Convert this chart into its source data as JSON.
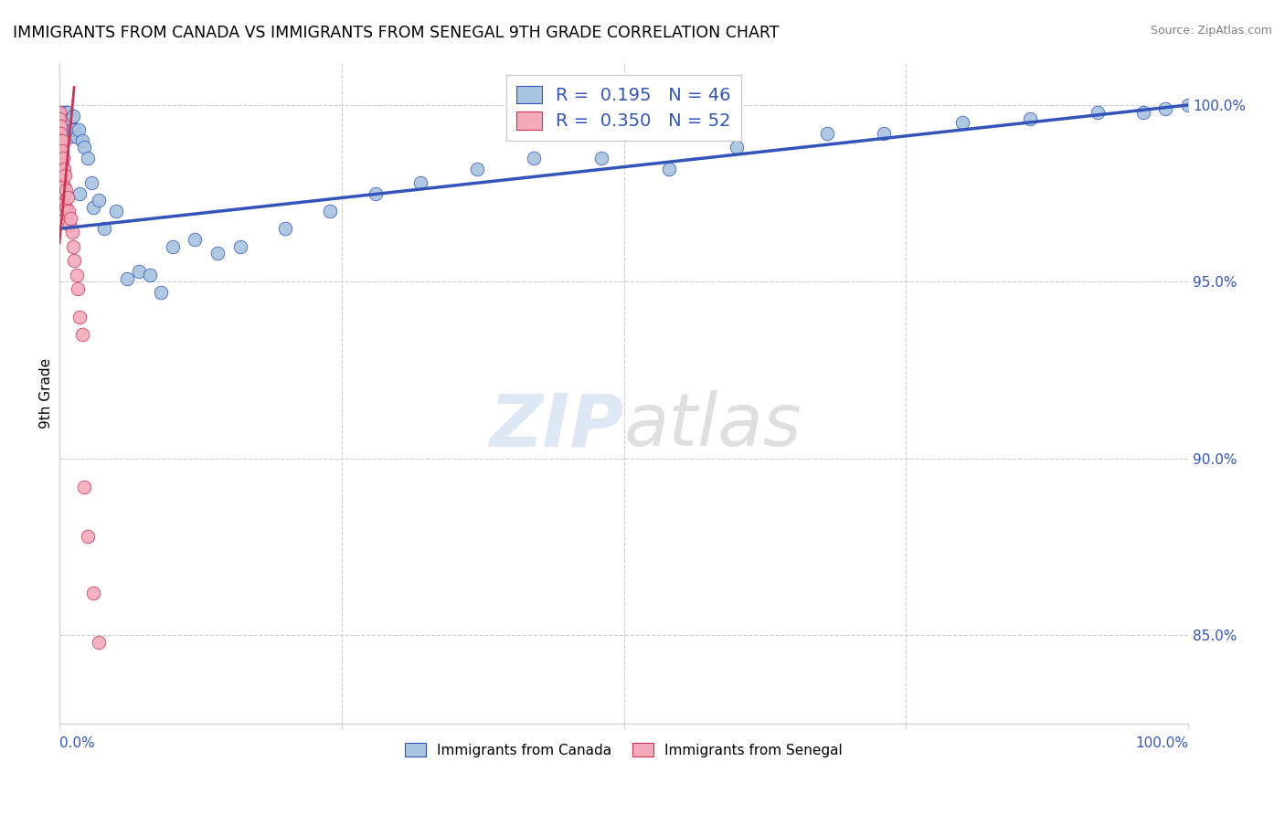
{
  "title": "IMMIGRANTS FROM CANADA VS IMMIGRANTS FROM SENEGAL 9TH GRADE CORRELATION CHART",
  "source": "Source: ZipAtlas.com",
  "ylabel": "9th Grade",
  "legend_blue_r_val": "0.195",
  "legend_blue_n_val": "46",
  "legend_pink_r_val": "0.350",
  "legend_pink_n_val": "52",
  "legend_blue_label": "Immigrants from Canada",
  "legend_pink_label": "Immigrants from Senegal",
  "blue_color": "#A8C4E0",
  "pink_color": "#F4AABB",
  "blue_line_color": "#3355BB",
  "pink_line_color": "#CC3355",
  "right_ytick_labels": [
    "85.0%",
    "90.0%",
    "95.0%",
    "100.0%"
  ],
  "right_ytick_values": [
    0.85,
    0.9,
    0.95,
    1.0
  ],
  "xlim": [
    0.0,
    1.0
  ],
  "ylim": [
    0.825,
    1.012
  ],
  "blue_x": [
    0.003,
    0.005,
    0.006,
    0.007,
    0.008,
    0.009,
    0.01,
    0.011,
    0.012,
    0.013,
    0.015,
    0.017,
    0.018,
    0.02,
    0.022,
    0.025,
    0.028,
    0.03,
    0.035,
    0.04,
    0.05,
    0.06,
    0.07,
    0.08,
    0.09,
    0.1,
    0.12,
    0.14,
    0.16,
    0.2,
    0.24,
    0.28,
    0.32,
    0.37,
    0.42,
    0.48,
    0.54,
    0.6,
    0.68,
    0.73,
    0.8,
    0.86,
    0.92,
    0.96,
    0.98,
    1.0
  ],
  "blue_y": [
    0.998,
    0.993,
    0.998,
    0.998,
    0.991,
    0.995,
    0.996,
    0.993,
    0.997,
    0.993,
    0.991,
    0.993,
    0.975,
    0.99,
    0.988,
    0.985,
    0.978,
    0.971,
    0.973,
    0.965,
    0.97,
    0.951,
    0.953,
    0.952,
    0.947,
    0.96,
    0.962,
    0.958,
    0.96,
    0.965,
    0.97,
    0.975,
    0.978,
    0.982,
    0.985,
    0.985,
    0.982,
    0.988,
    0.992,
    0.992,
    0.995,
    0.996,
    0.998,
    0.998,
    0.999,
    1.0
  ],
  "pink_x": [
    0.0,
    0.0,
    0.0,
    0.0,
    0.0,
    0.0,
    0.0,
    0.0,
    0.0,
    0.0,
    0.0,
    0.0,
    0.001,
    0.001,
    0.001,
    0.001,
    0.001,
    0.001,
    0.001,
    0.001,
    0.002,
    0.002,
    0.002,
    0.002,
    0.002,
    0.003,
    0.003,
    0.003,
    0.004,
    0.004,
    0.004,
    0.005,
    0.005,
    0.005,
    0.006,
    0.006,
    0.007,
    0.007,
    0.008,
    0.009,
    0.01,
    0.011,
    0.012,
    0.013,
    0.015,
    0.016,
    0.018,
    0.02,
    0.022,
    0.025,
    0.03,
    0.035
  ],
  "pink_y": [
    0.998,
    0.996,
    0.994,
    0.992,
    0.99,
    0.988,
    0.986,
    0.984,
    0.982,
    0.98,
    0.978,
    0.976,
    0.994,
    0.992,
    0.99,
    0.988,
    0.985,
    0.982,
    0.978,
    0.974,
    0.99,
    0.987,
    0.983,
    0.978,
    0.975,
    0.985,
    0.981,
    0.976,
    0.982,
    0.977,
    0.972,
    0.98,
    0.975,
    0.97,
    0.976,
    0.971,
    0.974,
    0.969,
    0.97,
    0.966,
    0.968,
    0.964,
    0.96,
    0.956,
    0.952,
    0.948,
    0.94,
    0.935,
    0.892,
    0.878,
    0.862,
    0.848
  ],
  "blue_trend_x": [
    0.0,
    1.0
  ],
  "blue_trend_y": [
    0.965,
    1.0
  ],
  "pink_trend_x": [
    0.0,
    0.013
  ],
  "pink_trend_y": [
    0.961,
    1.005
  ]
}
